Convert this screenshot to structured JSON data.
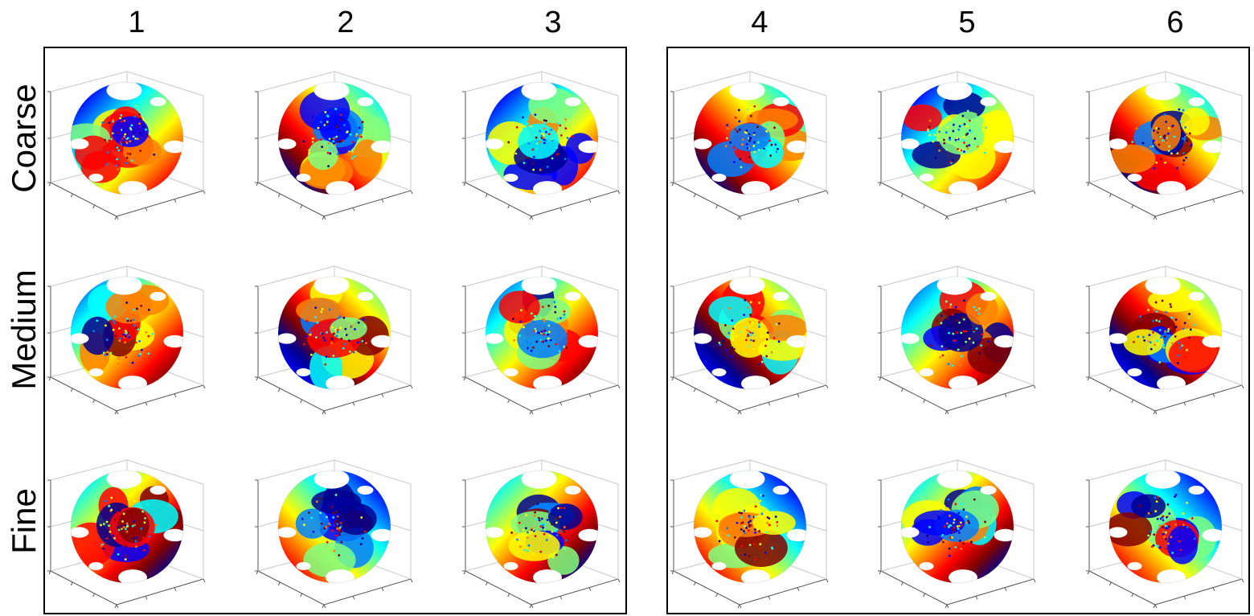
{
  "columns": [
    "1",
    "2",
    "3",
    "4",
    "5",
    "6"
  ],
  "rows": [
    "Coarse",
    "Medium",
    "Fine"
  ],
  "colormap": [
    "#00008f",
    "#0000ff",
    "#0080ff",
    "#00ffff",
    "#80ff80",
    "#ffff00",
    "#ff8000",
    "#ff0000",
    "#800000"
  ],
  "panel_groups": [
    {
      "name": "left-panel",
      "columns": [
        "1",
        "2",
        "3"
      ]
    },
    {
      "name": "right-panel",
      "columns": [
        "4",
        "5",
        "6"
      ]
    }
  ],
  "cell_content": "sphere-point-cloud-3d-axes"
}
